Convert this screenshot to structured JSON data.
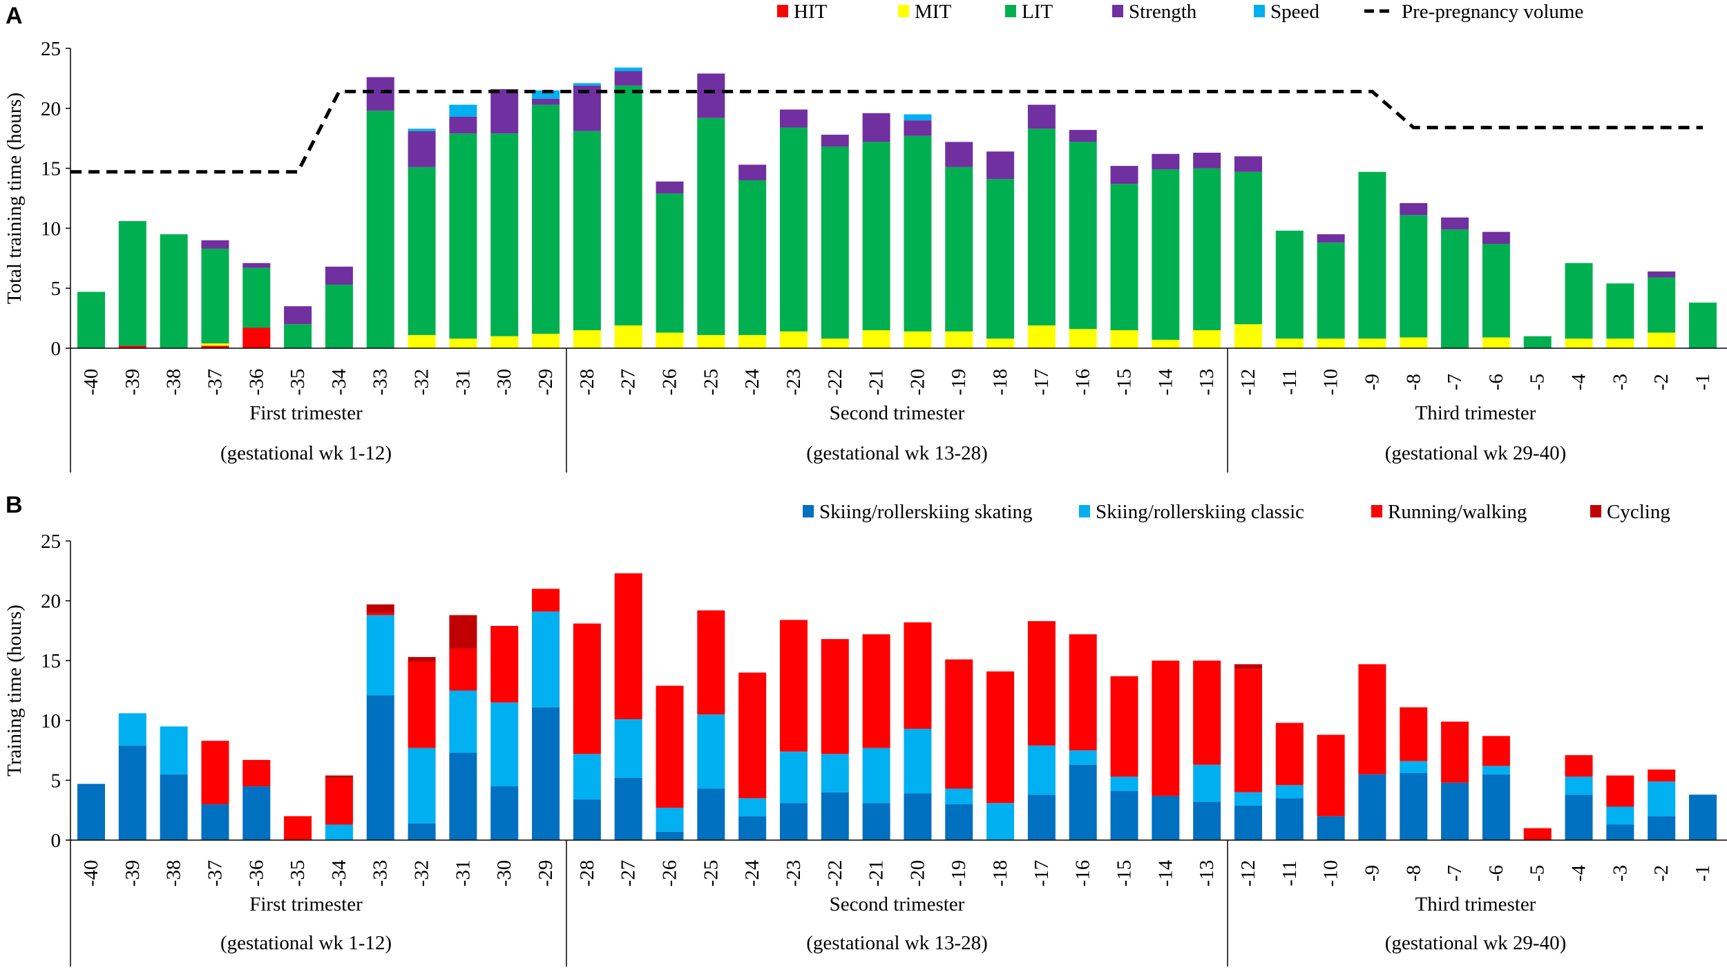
{
  "weeks": [
    "-40",
    "-39",
    "-38",
    "-37",
    "-36",
    "-35",
    "-34",
    "-33",
    "-32",
    "-31",
    "-30",
    "-29",
    "-28",
    "-27",
    "-26",
    "-25",
    "-24",
    "-23",
    "-22",
    "-21",
    "-20",
    "-19",
    "-18",
    "-17",
    "-16",
    "-15",
    "-14",
    "-13",
    "-12",
    "-11",
    "-10",
    "-9",
    "-8",
    "-7",
    "-6",
    "-5",
    "-4",
    "-3",
    "-2",
    "-1"
  ],
  "trimesters": [
    {
      "name": "First trimester",
      "range": "(gestational wk 1-12)"
    },
    {
      "name": "Second trimester",
      "range": "(gestational wk 13-28)"
    },
    {
      "name": "Third trimester",
      "range": "(gestational wk 29-40)"
    }
  ],
  "chart_data": [
    {
      "panel": "A",
      "type": "bar",
      "stacked": true,
      "ylabel": "Total training time (hours)",
      "ylim": [
        0,
        25
      ],
      "yticks": [
        "0",
        "5",
        "10",
        "15",
        "20",
        "25"
      ],
      "legend_position": "top-right",
      "series": [
        {
          "name": "HIT",
          "color": "#ff0000",
          "values": [
            0,
            0.2,
            0,
            0.2,
            1.7,
            0,
            0,
            0,
            0,
            0,
            0,
            0,
            0,
            0,
            0,
            0,
            0,
            0,
            0,
            0,
            0,
            0,
            0,
            0,
            0,
            0,
            0,
            0,
            0,
            0,
            0,
            0,
            0,
            0,
            0,
            0,
            0,
            0,
            0,
            0
          ]
        },
        {
          "name": "MIT",
          "color": "#ffff00",
          "values": [
            0,
            0,
            0,
            0.2,
            0,
            0,
            0,
            0,
            1.1,
            0.8,
            1.0,
            1.2,
            1.5,
            1.9,
            1.3,
            1.1,
            1.1,
            1.4,
            0.8,
            1.5,
            1.4,
            1.4,
            0.8,
            1.9,
            1.6,
            1.5,
            0.7,
            1.5,
            2.0,
            0.8,
            0.8,
            0.8,
            0.9,
            0,
            0.9,
            0,
            0.8,
            0.8,
            1.3,
            0
          ]
        },
        {
          "name": "LIT",
          "color": "#00b050",
          "values": [
            4.7,
            10.4,
            9.5,
            7.9,
            5.0,
            2.0,
            5.3,
            19.8,
            14.0,
            17.1,
            16.9,
            19.1,
            16.6,
            20.0,
            11.6,
            18.1,
            12.9,
            17.0,
            16.0,
            15.7,
            16.3,
            13.7,
            13.3,
            16.4,
            15.6,
            12.2,
            14.2,
            13.5,
            12.7,
            9.0,
            8.0,
            13.9,
            10.2,
            9.9,
            7.8,
            1.0,
            6.3,
            4.6,
            4.6,
            3.8
          ]
        },
        {
          "name": "Strength",
          "color": "#7030a0",
          "values": [
            0,
            0,
            0,
            0.7,
            0.4,
            1.5,
            1.5,
            2.8,
            3.0,
            1.4,
            3.7,
            0.5,
            3.8,
            1.2,
            1.0,
            3.7,
            1.3,
            1.5,
            1.0,
            2.4,
            1.3,
            2.1,
            2.3,
            2.0,
            1.0,
            1.5,
            1.3,
            1.3,
            1.3,
            0,
            0.7,
            0,
            1.0,
            1.0,
            1.0,
            0,
            0,
            0,
            0.5,
            0
          ]
        },
        {
          "name": "Speed",
          "color": "#00b0f0",
          "values": [
            0,
            0,
            0,
            0,
            0,
            0,
            0,
            0,
            0.2,
            1.0,
            0,
            0.7,
            0.2,
            0.3,
            0,
            0,
            0,
            0,
            0,
            0,
            0.5,
            0,
            0,
            0,
            0,
            0,
            0,
            0,
            0,
            0,
            0,
            0,
            0,
            0,
            0,
            0,
            0,
            0,
            0,
            0
          ]
        }
      ],
      "reference_line": {
        "name": "Pre-pregnancy volume",
        "points": [
          [
            "-40.5",
            14.7
          ],
          [
            "-35",
            14.7
          ],
          [
            "-34",
            21.4
          ],
          [
            "-9",
            21.4
          ],
          [
            "-8",
            18.4
          ],
          [
            "-1",
            18.4
          ]
        ]
      }
    },
    {
      "panel": "B",
      "type": "bar",
      "stacked": true,
      "ylabel": "Training time (hours)",
      "ylim": [
        0,
        25
      ],
      "yticks": [
        "0",
        "5",
        "10",
        "15",
        "20",
        "25"
      ],
      "legend_position": "top-right",
      "series": [
        {
          "name": "Skiing/rollerskiing skating",
          "color": "#0070c0",
          "values": [
            4.7,
            7.9,
            5.5,
            3.0,
            4.5,
            0,
            0,
            12.1,
            1.4,
            7.3,
            4.5,
            11.1,
            3.4,
            5.2,
            0.7,
            4.3,
            2.0,
            3.1,
            4.0,
            3.1,
            3.9,
            3.0,
            0,
            3.8,
            6.3,
            4.1,
            3.7,
            3.2,
            2.9,
            3.5,
            2.0,
            5.5,
            5.6,
            4.8,
            5.5,
            0,
            3.8,
            1.3,
            2.0,
            3.8
          ]
        },
        {
          "name": "Skiing/rollerskiing classic",
          "color": "#00b0f0",
          "values": [
            0,
            2.7,
            4.0,
            0,
            0,
            0,
            1.3,
            6.7,
            6.3,
            5.2,
            7.0,
            8.0,
            3.8,
            4.9,
            2.0,
            6.2,
            1.5,
            4.3,
            3.2,
            4.6,
            5.4,
            1.3,
            3.1,
            4.1,
            1.2,
            1.2,
            0,
            3.1,
            1.1,
            1.1,
            0,
            0,
            1.0,
            0,
            0.7,
            0,
            1.5,
            1.5,
            2.9,
            0
          ]
        },
        {
          "name": "Running/walking",
          "color": "#ff0000",
          "values": [
            0,
            0,
            0,
            5.3,
            2.2,
            2.0,
            3.9,
            0.2,
            7.2,
            3.5,
            6.4,
            1.9,
            10.9,
            12.2,
            10.2,
            8.7,
            10.5,
            11.0,
            9.6,
            9.5,
            8.9,
            10.8,
            11.0,
            10.4,
            9.7,
            8.4,
            11.3,
            8.7,
            10.3,
            5.2,
            6.8,
            9.2,
            4.5,
            5.1,
            2.5,
            1.0,
            1.8,
            2.6,
            1.0,
            0
          ]
        },
        {
          "name": "Cycling",
          "color": "#c00000",
          "values": [
            0,
            0,
            0,
            0,
            0,
            0,
            0.2,
            0.7,
            0.4,
            2.8,
            0,
            0,
            0,
            0,
            0,
            0,
            0,
            0,
            0,
            0,
            0,
            0,
            0,
            0,
            0,
            0,
            0,
            0,
            0.4,
            0,
            0,
            0,
            0,
            0,
            0,
            0,
            0,
            0,
            0,
            0
          ]
        }
      ]
    }
  ]
}
